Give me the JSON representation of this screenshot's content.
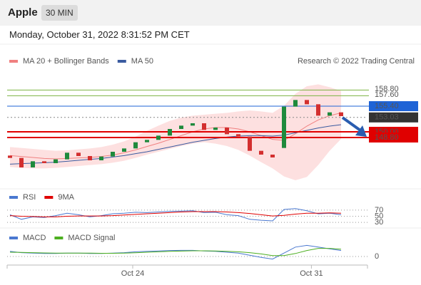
{
  "header": {
    "title": "Apple",
    "interval": "30 MIN",
    "datetime": "Monday, October 31, 2022 8:31:52 PM CET"
  },
  "chart_data": [
    {
      "type": "candlestick",
      "legend": [
        {
          "name": "MA 20 + Bollinger Bands",
          "color": "#f08080"
        },
        {
          "name": "MA 50",
          "color": "#3a5ba0"
        }
      ],
      "credit": "Research © 2022 Trading Central",
      "open": [
        145.0,
        144.5,
        142.5,
        143.8,
        143.4,
        144.2,
        145.6,
        144.9,
        144.0,
        144.8,
        145.8,
        146.5,
        147.8,
        148.3,
        149.2,
        150.6,
        151.3,
        151.8,
        150.4,
        150.9,
        149.5,
        149.0,
        146.0,
        145.2,
        146.6,
        155.3,
        156.7,
        155.8,
        153.4,
        154.1
      ],
      "close": [
        144.5,
        142.5,
        143.8,
        143.4,
        144.2,
        145.6,
        144.9,
        144.0,
        144.8,
        145.8,
        146.5,
        147.8,
        148.3,
        149.2,
        150.6,
        151.3,
        151.8,
        150.4,
        150.9,
        149.5,
        149.0,
        146.0,
        145.2,
        144.6,
        155.3,
        156.7,
        155.8,
        153.4,
        154.1,
        153.3
      ],
      "ma20": [
        145.0,
        144.8,
        144.6,
        144.4,
        144.3,
        144.4,
        144.5,
        144.6,
        144.8,
        145.1,
        145.6,
        146.2,
        146.9,
        147.6,
        148.4,
        149.2,
        150.0,
        150.6,
        150.9,
        150.9,
        150.6,
        150.0,
        149.2,
        148.4,
        148.2,
        149.6,
        151.2,
        152.5,
        153.4,
        154.0
      ],
      "upper": [
        146.8,
        146.6,
        146.4,
        146.2,
        146.0,
        146.1,
        146.3,
        146.5,
        146.8,
        147.3,
        148.0,
        149.0,
        150.2,
        151.3,
        152.3,
        153.0,
        153.4,
        153.6,
        153.8,
        154.0,
        154.3,
        154.5,
        154.3,
        154.0,
        155.5,
        158.0,
        159.6,
        160.0,
        159.4,
        158.6
      ],
      "lower": [
        142.6,
        142.4,
        142.3,
        142.3,
        142.4,
        142.6,
        142.8,
        143.0,
        143.2,
        143.5,
        143.9,
        144.5,
        145.2,
        145.8,
        146.4,
        147.0,
        147.5,
        147.8,
        147.5,
        147.0,
        146.2,
        145.0,
        143.6,
        142.3,
        140.6,
        139.8,
        140.5,
        143.0,
        146.0,
        148.5
      ],
      "ma50": [
        143.2,
        143.3,
        143.4,
        143.5,
        143.6,
        143.8,
        144.0,
        144.2,
        144.4,
        144.7,
        145.0,
        145.4,
        145.8,
        146.3,
        146.8,
        147.3,
        147.8,
        148.2,
        148.6,
        148.9,
        149.1,
        149.2,
        149.2,
        149.1,
        149.3,
        149.8,
        150.3,
        150.8,
        151.2,
        151.5
      ],
      "ylim": [
        138,
        163.5
      ],
      "levels": [
        {
          "value": 158.8,
          "label": "158.80",
          "color": "#7cb342",
          "style": "text"
        },
        {
          "value": 157.6,
          "label": "157.60",
          "color": "#7cb342",
          "style": "text"
        },
        {
          "value": 155.4,
          "label": "155.40",
          "color": "#1e63d6",
          "style": "box"
        },
        {
          "value": 153.03,
          "label": "153.03",
          "color": "#333333",
          "style": "current"
        },
        {
          "value": 150.0,
          "label": "150.00",
          "color": "#e00000",
          "style": "box"
        },
        {
          "value": 148.8,
          "label": "148.80",
          "color": "#e00000",
          "style": "box"
        }
      ]
    },
    {
      "type": "line",
      "series": [
        {
          "name": "RSI",
          "color": "#4a78d0",
          "values": [
            55,
            40,
            48,
            46,
            52,
            60,
            55,
            48,
            52,
            58,
            60,
            63,
            62,
            64,
            66,
            67,
            68,
            62,
            63,
            55,
            52,
            40,
            37,
            35,
            72,
            75,
            68,
            58,
            60,
            55
          ]
        },
        {
          "name": "9MA",
          "color": "#e00000",
          "values": [
            52,
            50,
            49,
            48,
            48,
            50,
            51,
            51,
            51,
            52,
            54,
            56,
            58,
            60,
            62,
            64,
            65,
            65,
            65,
            64,
            62,
            59,
            55,
            51,
            53,
            57,
            60,
            60,
            61,
            60
          ]
        }
      ],
      "ylim": [
        0,
        100
      ],
      "yticks": [
        70,
        50,
        30
      ]
    },
    {
      "type": "line",
      "series": [
        {
          "name": "MACD",
          "color": "#4a78d0",
          "values": [
            0.6,
            0.45,
            0.4,
            0.35,
            0.35,
            0.4,
            0.4,
            0.35,
            0.35,
            0.4,
            0.45,
            0.55,
            0.6,
            0.65,
            0.7,
            0.72,
            0.72,
            0.65,
            0.6,
            0.5,
            0.4,
            0.15,
            -0.1,
            -0.3,
            0.4,
            1.1,
            1.3,
            1.1,
            0.9,
            0.7
          ]
        },
        {
          "name": "MACD Signal",
          "color": "#4caf20",
          "values": [
            0.5,
            0.48,
            0.45,
            0.42,
            0.4,
            0.4,
            0.4,
            0.4,
            0.38,
            0.38,
            0.4,
            0.44,
            0.5,
            0.55,
            0.6,
            0.64,
            0.67,
            0.67,
            0.65,
            0.6,
            0.55,
            0.45,
            0.3,
            0.1,
            0.1,
            0.35,
            0.7,
            0.95,
            0.95,
            0.85
          ]
        }
      ],
      "ylim": [
        -1,
        1.5
      ],
      "yticks": [
        0
      ],
      "xticks": [
        {
          "value": 10.75,
          "label": "Oct 24"
        },
        {
          "value": 26.4,
          "label": "Oct 31"
        }
      ]
    }
  ]
}
